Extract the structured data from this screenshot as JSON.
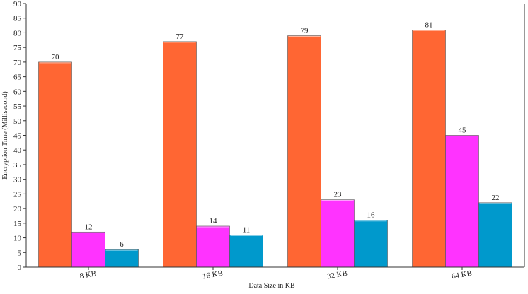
{
  "chart_data": {
    "type": "bar",
    "categories": [
      "8 KB",
      "16 KB",
      "32 KB",
      "64 KB"
    ],
    "series": [
      {
        "values": [
          70,
          77,
          79,
          81
        ],
        "color": "#ff6633"
      },
      {
        "values": [
          12,
          14,
          23,
          45
        ],
        "color": "#ff33ff"
      },
      {
        "values": [
          6,
          11,
          16,
          22
        ],
        "color": "#0099cc"
      }
    ],
    "xlabel": "Data Size in KB",
    "ylabel": "Encryption Time (Millisecond)",
    "ylim": [
      0,
      90
    ],
    "yticks": [
      0,
      5,
      10,
      15,
      20,
      25,
      30,
      35,
      40,
      45,
      50,
      55,
      60,
      65,
      70,
      75,
      80,
      85,
      90
    ],
    "grid": false,
    "legend": "none"
  }
}
